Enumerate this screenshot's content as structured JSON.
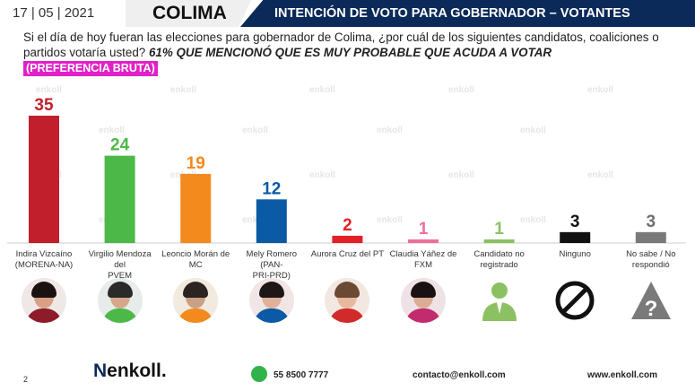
{
  "header": {
    "date": "17 | 05 | 2021",
    "state": "COLIMA",
    "title": "INTENCIÓN DE VOTO PARA GOBERNADOR – VOTANTES PROBABLES"
  },
  "question": {
    "text": "Si el día de hoy fueran las elecciones para gobernador de Colima, ¿por cuál de los siguientes candidatos, coaliciones o partidos votaría usted?",
    "emphasis": "61% QUE MENCIONÓ QUE ES MUY PROBABLE QUE ACUDA A VOTAR",
    "tag": "(PREFERENCIA BRUTA)"
  },
  "watermark": "enkoll",
  "chart_data": {
    "type": "bar",
    "categories": [
      "Indira Vizcaíno (MORENA-NA)",
      "Virgilio Mendoza del PVEM",
      "Leoncio Morán de MC",
      "Mely Romero (PAN-PRI-PRD)",
      "Aurora Cruz del PT",
      "Claudia Yáñez de FXM",
      "Candidato no registrado",
      "Ninguno",
      "No sabe / No respondió"
    ],
    "labels": [
      [
        "Indira Vizcaíno",
        "(MORENA-NA)"
      ],
      [
        "Virgilio Mendoza del",
        "PVEM"
      ],
      [
        "Leoncio Morán de",
        "MC"
      ],
      [
        "Mely Romero (PAN-",
        "PRI-PRD)"
      ],
      [
        "Aurora Cruz del PT"
      ],
      [
        "Claudia Yáñez de",
        "FXM"
      ],
      [
        "Candidato no",
        "registrado"
      ],
      [
        "Ninguno"
      ],
      [
        "No sabe / No",
        "respondió"
      ]
    ],
    "values": [
      35,
      24,
      19,
      12,
      2,
      1,
      1,
      3,
      3
    ],
    "colors": [
      "#c21f2c",
      "#4cb848",
      "#f28a1e",
      "#0a5aa5",
      "#e41f26",
      "#ef6f9b",
      "#8cc162",
      "#111111",
      "#7a7a7a"
    ],
    "ylim": [
      0,
      40
    ],
    "data_labels": true
  },
  "photos": [
    {
      "kind": "person",
      "bg": "#f0e8e6",
      "hair": "#1b1212",
      "body": "#8e1b2a",
      "skin": "#d9a088"
    },
    {
      "kind": "person",
      "bg": "#e6ece9",
      "hair": "#2a2a2a",
      "body": "#4cb848",
      "skin": "#d7a78b"
    },
    {
      "kind": "person",
      "bg": "#f2e9df",
      "hair": "#2b2420",
      "body": "#f28a1e",
      "skin": "#caa084"
    },
    {
      "kind": "person",
      "bg": "#f1e6e6",
      "hair": "#1e1717",
      "body": "#0a5aa5",
      "skin": "#e0b19a"
    },
    {
      "kind": "person",
      "bg": "#f3e7e2",
      "hair": "#6b4a34",
      "body": "#d12a2a",
      "skin": "#e6b89d"
    },
    {
      "kind": "person",
      "bg": "#efe2e6",
      "hair": "#1a1212",
      "body": "#c22b6e",
      "skin": "#dcab95"
    },
    {
      "kind": "unregistered-icon",
      "color": "#8cc162"
    },
    {
      "kind": "none-icon",
      "color": "#111111"
    },
    {
      "kind": "unknown-icon",
      "color": "#7a7a7a"
    }
  ],
  "footer": {
    "page": "2",
    "logo": "enkoll.",
    "phone": "55 8500 7777",
    "email": "contacto@enkoll.com",
    "site": "www.enkoll.com"
  }
}
